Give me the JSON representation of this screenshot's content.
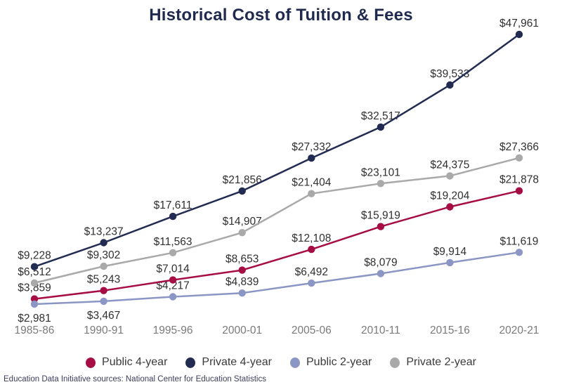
{
  "title": "Historical Cost of Tuition & Fees",
  "footer": {
    "source_note": "Education Data Initiative sources: National Center for Education Statistics"
  },
  "colors": {
    "title": "#1F2A4E",
    "data_label_text": "#2F2F2F",
    "axis_label_text": "#7A7A7A",
    "legend_text": "#3A3A3A",
    "background": "#FFFFFF"
  },
  "chart_data": {
    "type": "line",
    "title": "Historical Cost of Tuition & Fees",
    "xlabel": "",
    "ylabel": "",
    "categories": [
      "1985-86",
      "1990-91",
      "1995-96",
      "2000-01",
      "2005-06",
      "2010-11",
      "2015-16",
      "2020-21"
    ],
    "series": [
      {
        "name": "Public 4-year",
        "color": "#A60D45",
        "values": [
          3859,
          5243,
          7014,
          8653,
          12108,
          15919,
          19204,
          21878
        ]
      },
      {
        "name": "Private 4-year",
        "color": "#222B52",
        "values": [
          9228,
          13237,
          17611,
          21856,
          27332,
          32517,
          39533,
          47961
        ]
      },
      {
        "name": "Public 2-year",
        "color": "#8B96C5",
        "values": [
          2981,
          3467,
          4217,
          4839,
          6492,
          8079,
          9914,
          11619
        ]
      },
      {
        "name": "Private 2-year",
        "color": "#A9A9A9",
        "values": [
          6512,
          9302,
          11563,
          14907,
          21404,
          23101,
          24375,
          27366
        ]
      }
    ],
    "ylim": [
      0,
      53900
    ],
    "grid": false,
    "axes_visible": false,
    "data_labels": true,
    "label_format": "$#,###",
    "legend_position": "bottom",
    "label_below_overrides": [
      {
        "series": "Public 2-year",
        "indices": [
          0,
          1
        ]
      }
    ]
  }
}
